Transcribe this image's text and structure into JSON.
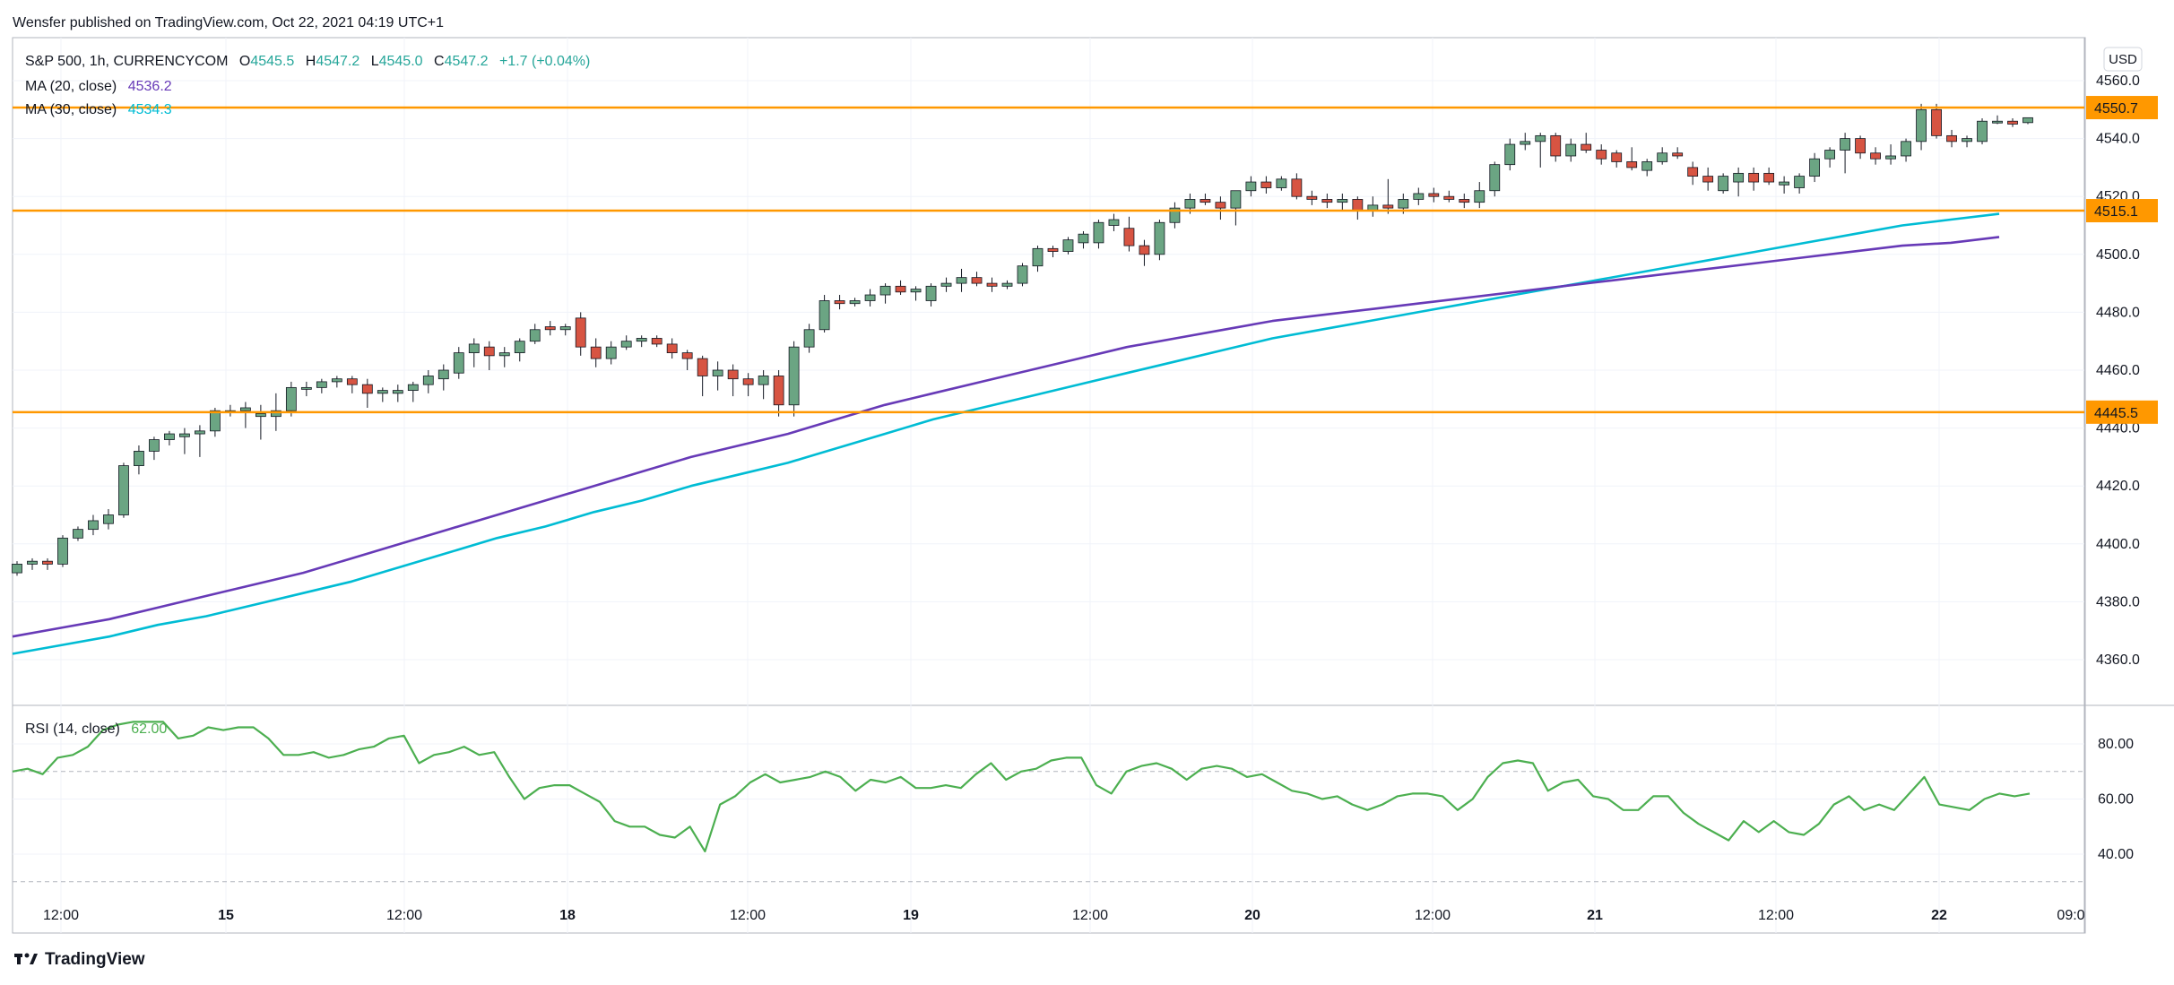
{
  "publisher_line": "Wensfer published on TradingView.com, Oct 22, 2021 04:19 UTC+1",
  "footer_logo_text": "TradingView",
  "currency_label": "USD",
  "legend": {
    "symbol_line": "S&P 500, 1h, CURRENCYCOM",
    "open_label": "O",
    "open": "4545.5",
    "high_label": "H",
    "high": "4547.2",
    "low_label": "L",
    "low": "4545.0",
    "close_label": "C",
    "close": "4547.2",
    "change": "+1.7 (+0.04%)",
    "ma20_label": "MA (20, close)",
    "ma20_value": "4536.2",
    "ma30_label": "MA (30, close)",
    "ma30_value": "4534.3",
    "rsi_label": "RSI (14, close)",
    "rsi_value": "62.00"
  },
  "colors": {
    "up": "#6BA583",
    "down": "#D75442",
    "ma20": "#673AB7",
    "ma30": "#00BCD4",
    "rsi": "#4CAF50",
    "hline": "#FF9800",
    "grid": "#F0F3FA"
  },
  "chart_data": [
    {
      "type": "candlestick",
      "title": "S&P 500, 1h, CURRENCYCOM",
      "y_axis_ticks": [
        "4360.0",
        "4380.0",
        "4400.0",
        "4420.0",
        "4440.0",
        "4460.0",
        "4480.0",
        "4500.0",
        "4520.0",
        "4540.0",
        "4560.0"
      ],
      "ylim": [
        4350,
        4578
      ],
      "x_axis_ticks": [
        "12:00",
        "15",
        "12:00",
        "18",
        "12:00",
        "19",
        "12:00",
        "20",
        "12:00",
        "21",
        "12:00",
        "22",
        "09:0"
      ],
      "horizontal_levels": [
        {
          "value": 4550.7,
          "label": "4550.7"
        },
        {
          "value": 4515.1,
          "label": "4515.1"
        },
        {
          "value": 4445.5,
          "label": "4445.5"
        }
      ],
      "candles": [
        [
          4390,
          4394,
          4389,
          4393
        ],
        [
          4393,
          4395,
          4391,
          4394
        ],
        [
          4394,
          4395,
          4391,
          4393
        ],
        [
          4393,
          4403,
          4392,
          4402
        ],
        [
          4402,
          4406,
          4401,
          4405
        ],
        [
          4405,
          4410,
          4403,
          4408
        ],
        [
          4407,
          4412,
          4405,
          4410
        ],
        [
          4410,
          4428,
          4409,
          4427
        ],
        [
          4427,
          4434,
          4424,
          4432
        ],
        [
          4432,
          4437,
          4429,
          4436
        ],
        [
          4436,
          4439,
          4434,
          4438
        ],
        [
          4437,
          4440,
          4431,
          4438
        ],
        [
          4438,
          4441,
          4430,
          4439
        ],
        [
          4439,
          4447,
          4437,
          4446
        ],
        [
          4446,
          4448,
          4444,
          4446
        ],
        [
          4446,
          4449,
          4440,
          4447
        ],
        [
          4444,
          4448,
          4436,
          4445
        ],
        [
          4444,
          4452,
          4439,
          4446
        ],
        [
          4446,
          4456,
          4444,
          4454
        ],
        [
          4454,
          4456,
          4451,
          4454
        ],
        [
          4454,
          4457,
          4452,
          4456
        ],
        [
          4456,
          4458,
          4454,
          4457
        ],
        [
          4457,
          4458,
          4452,
          4455
        ],
        [
          4455,
          4457,
          4447,
          4452
        ],
        [
          4452,
          4454,
          4449,
          4453
        ],
        [
          4452,
          4455,
          4449,
          4453
        ],
        [
          4453,
          4456,
          4449,
          4455
        ],
        [
          4455,
          4460,
          4452,
          4458
        ],
        [
          4457,
          4462,
          4453,
          4460
        ],
        [
          4459,
          4468,
          4457,
          4466
        ],
        [
          4466,
          4471,
          4461,
          4469
        ],
        [
          4468,
          4470,
          4460,
          4465
        ],
        [
          4465,
          4468,
          4461,
          4466
        ],
        [
          4466,
          4471,
          4463,
          4470
        ],
        [
          4470,
          4476,
          4469,
          4474
        ],
        [
          4475,
          4477,
          4472,
          4474
        ],
        [
          4474,
          4476,
          4472,
          4475
        ],
        [
          4478,
          4480,
          4465,
          4468
        ],
        [
          4468,
          4471,
          4461,
          4464
        ],
        [
          4464,
          4470,
          4462,
          4468
        ],
        [
          4468,
          4472,
          4467,
          4470
        ],
        [
          4470,
          4472,
          4468,
          4471
        ],
        [
          4471,
          4472,
          4468,
          4469
        ],
        [
          4469,
          4471,
          4464,
          4466
        ],
        [
          4466,
          4467,
          4460,
          4464
        ],
        [
          4464,
          4465,
          4451,
          4458
        ],
        [
          4458,
          4463,
          4453,
          4460
        ],
        [
          4460,
          4462,
          4451,
          4457
        ],
        [
          4457,
          4459,
          4451,
          4455
        ],
        [
          4455,
          4460,
          4450,
          4458
        ],
        [
          4458,
          4460,
          4444,
          4448
        ],
        [
          4448,
          4470,
          4444,
          4468
        ],
        [
          4468,
          4476,
          4466,
          4474
        ],
        [
          4474,
          4486,
          4473,
          4484
        ],
        [
          4484,
          4486,
          4481,
          4483
        ],
        [
          4483,
          4485,
          4482,
          4484
        ],
        [
          4484,
          4488,
          4482,
          4486
        ],
        [
          4486,
          4490,
          4483,
          4489
        ],
        [
          4489,
          4491,
          4486,
          4487
        ],
        [
          4487,
          4489,
          4484,
          4488
        ],
        [
          4484,
          4490,
          4482,
          4489
        ],
        [
          4489,
          4492,
          4487,
          4490
        ],
        [
          4490,
          4495,
          4487,
          4492
        ],
        [
          4492,
          4494,
          4489,
          4490
        ],
        [
          4490,
          4492,
          4487,
          4489
        ],
        [
          4489,
          4491,
          4488,
          4490
        ],
        [
          4490,
          4497,
          4489,
          4496
        ],
        [
          4496,
          4503,
          4494,
          4502
        ],
        [
          4502,
          4503,
          4499,
          4501
        ],
        [
          4501,
          4506,
          4500,
          4505
        ],
        [
          4504,
          4508,
          4502,
          4507
        ],
        [
          4504,
          4512,
          4502,
          4511
        ],
        [
          4510,
          4514,
          4508,
          4512
        ],
        [
          4509,
          4513,
          4501,
          4503
        ],
        [
          4503,
          4505,
          4496,
          4500
        ],
        [
          4500,
          4512,
          4498,
          4511
        ],
        [
          4511,
          4518,
          4509,
          4516
        ],
        [
          4516,
          4521,
          4514,
          4519
        ],
        [
          4519,
          4521,
          4517,
          4518
        ],
        [
          4518,
          4520,
          4512,
          4516
        ],
        [
          4516,
          4522,
          4510,
          4522
        ],
        [
          4522,
          4527,
          4520,
          4525
        ],
        [
          4525,
          4527,
          4521,
          4523
        ],
        [
          4523,
          4527,
          4522,
          4526
        ],
        [
          4526,
          4528,
          4519,
          4520
        ],
        [
          4520,
          4522,
          4517,
          4519
        ],
        [
          4519,
          4521,
          4516,
          4518
        ],
        [
          4518,
          4521,
          4515,
          4519
        ],
        [
          4519,
          4520,
          4512,
          4515
        ],
        [
          4515,
          4520,
          4513,
          4517
        ],
        [
          4517,
          4526,
          4514,
          4516
        ],
        [
          4516,
          4521,
          4514,
          4519
        ],
        [
          4519,
          4523,
          4517,
          4521
        ],
        [
          4521,
          4523,
          4518,
          4520
        ],
        [
          4520,
          4522,
          4518,
          4519
        ],
        [
          4519,
          4521,
          4516,
          4518
        ],
        [
          4518,
          4525,
          4516,
          4522
        ],
        [
          4522,
          4532,
          4520,
          4531
        ],
        [
          4531,
          4540,
          4529,
          4538
        ],
        [
          4538,
          4542,
          4536,
          4539
        ],
        [
          4539,
          4542,
          4530,
          4541
        ],
        [
          4541,
          4542,
          4532,
          4534
        ],
        [
          4534,
          4540,
          4532,
          4538
        ],
        [
          4538,
          4542,
          4535,
          4536
        ],
        [
          4536,
          4538,
          4531,
          4533
        ],
        [
          4535,
          4536,
          4530,
          4532
        ],
        [
          4532,
          4537,
          4529,
          4530
        ],
        [
          4529,
          4533,
          4527,
          4532
        ],
        [
          4532,
          4537,
          4531,
          4535
        ],
        [
          4535,
          4537,
          4533,
          4534
        ],
        [
          4530,
          4532,
          4524,
          4527
        ],
        [
          4527,
          4530,
          4522,
          4525
        ],
        [
          4522,
          4528,
          4521,
          4527
        ],
        [
          4525,
          4530,
          4520,
          4528
        ],
        [
          4528,
          4530,
          4522,
          4525
        ],
        [
          4528,
          4530,
          4524,
          4525
        ],
        [
          4524,
          4527,
          4521,
          4525
        ],
        [
          4523,
          4528,
          4521,
          4527
        ],
        [
          4527,
          4535,
          4525,
          4533
        ],
        [
          4533,
          4537,
          4530,
          4536
        ],
        [
          4536,
          4542,
          4528,
          4540
        ],
        [
          4540,
          4541,
          4533,
          4535
        ],
        [
          4535,
          4537,
          4531,
          4533
        ],
        [
          4533,
          4538,
          4531,
          4534
        ],
        [
          4534,
          4540,
          4532,
          4539
        ],
        [
          4539,
          4552,
          4536,
          4550
        ],
        [
          4550,
          4552,
          4540,
          4541
        ],
        [
          4541,
          4543,
          4537,
          4539
        ],
        [
          4539,
          4541,
          4537,
          4540
        ],
        [
          4539,
          4547,
          4538,
          4546
        ],
        [
          4546,
          4548,
          4545,
          4546
        ],
        [
          4546,
          4547,
          4544,
          4545
        ],
        [
          4545.5,
          4547.2,
          4545.0,
          4547.2
        ]
      ],
      "ma20": [
        4368,
        4371,
        4374,
        4378,
        4382,
        4386,
        4390,
        4395,
        4400,
        4405,
        4410,
        4415,
        4420,
        4425,
        4430,
        4434,
        4438,
        4443,
        4448,
        4452,
        4456,
        4460,
        4464,
        4468,
        4471,
        4474,
        4477,
        4479,
        4481,
        4483,
        4485,
        4487,
        4489,
        4491,
        4493,
        4495,
        4497,
        4499,
        4501,
        4503,
        4504,
        4506
      ],
      "ma30": [
        4362,
        4365,
        4368,
        4372,
        4375,
        4379,
        4383,
        4387,
        4392,
        4397,
        4402,
        4406,
        4411,
        4415,
        4420,
        4424,
        4428,
        4433,
        4438,
        4443,
        4447,
        4451,
        4455,
        4459,
        4463,
        4467,
        4471,
        4474,
        4477,
        4480,
        4483,
        4486,
        4489,
        4492,
        4495,
        4498,
        4501,
        4504,
        4507,
        4510,
        4512,
        4514
      ]
    },
    {
      "type": "line",
      "title": "RSI (14, close)",
      "y_axis_ticks": [
        "40.00",
        "60.00",
        "80.00"
      ],
      "ylim": [
        30,
        92
      ],
      "bands": [
        30,
        70
      ],
      "series": [
        {
          "values": [
            70,
            71,
            69,
            75,
            76,
            79,
            85,
            87,
            88,
            88,
            88,
            82,
            83,
            86,
            85,
            86,
            86,
            82,
            76,
            76,
            77,
            75,
            76,
            78,
            79,
            82,
            83,
            73,
            76,
            77,
            79,
            76,
            77,
            68,
            60,
            64,
            65,
            65,
            62,
            59,
            52,
            50,
            50,
            47,
            46,
            50,
            41,
            58,
            61,
            66,
            69,
            66,
            67,
            68,
            70,
            68,
            63,
            67,
            66,
            68,
            64,
            64,
            65,
            64,
            69,
            73,
            67,
            70,
            71,
            74,
            75,
            75,
            65,
            62,
            70,
            72,
            73,
            71,
            67,
            71,
            72,
            71,
            68,
            69,
            66,
            63,
            62,
            60,
            61,
            58,
            56,
            58,
            61,
            62,
            62,
            61,
            56,
            60,
            68,
            73,
            74,
            73,
            63,
            66,
            67,
            61,
            60,
            56,
            56,
            61,
            61,
            55,
            51,
            48,
            45,
            52,
            48,
            52,
            48,
            47,
            51,
            58,
            61,
            56,
            58,
            56,
            62,
            68,
            58,
            57,
            56,
            60,
            62,
            61,
            62
          ]
        }
      ]
    }
  ]
}
